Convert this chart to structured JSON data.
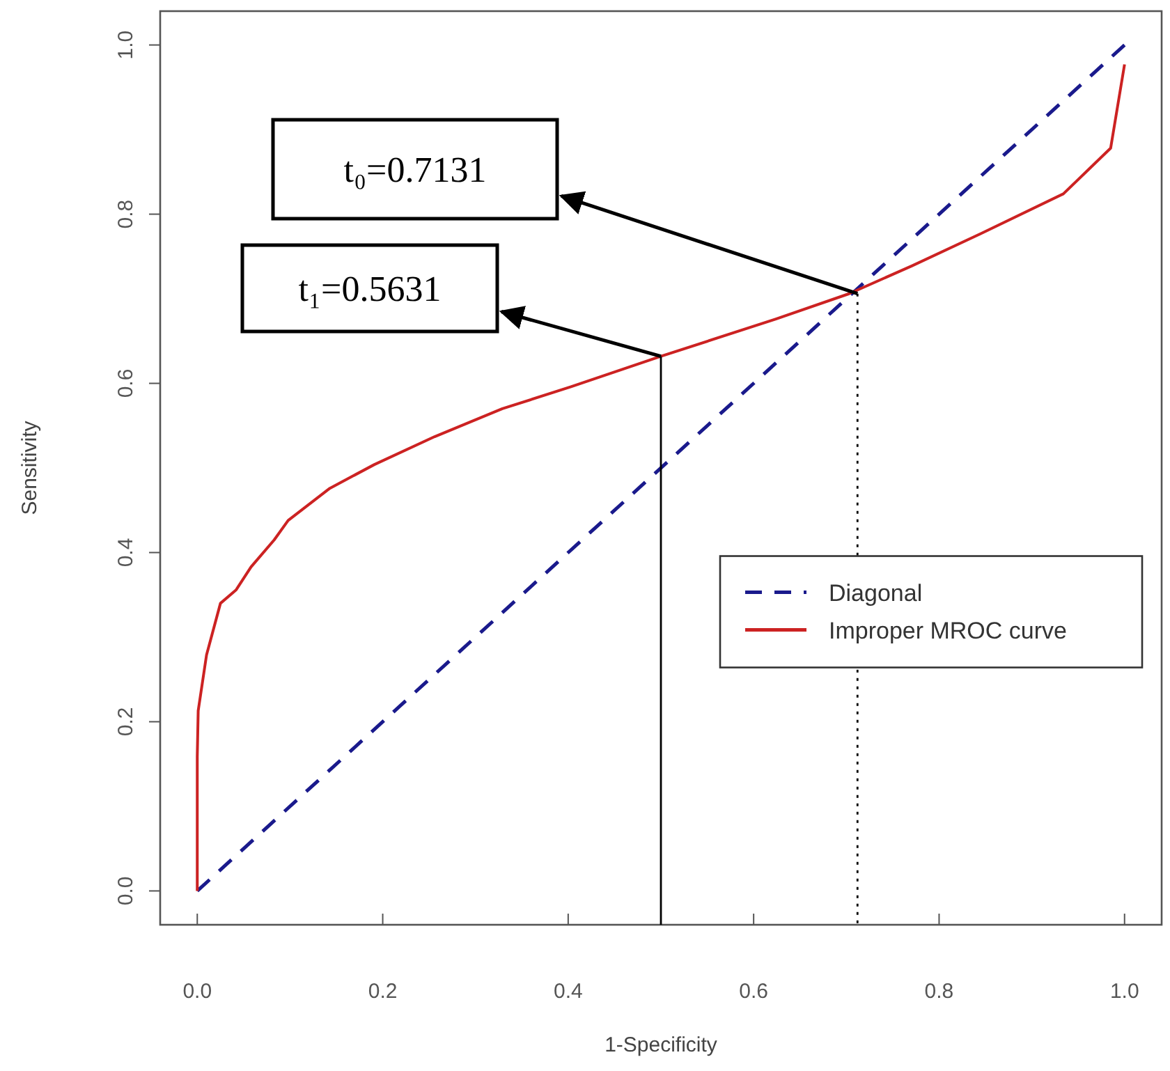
{
  "chart_data": {
    "type": "line",
    "xlabel": "1-Specificity",
    "ylabel": "Sensitivity",
    "xlim": [
      -0.04,
      1.04
    ],
    "ylim": [
      -0.04,
      1.04
    ],
    "xticks": [
      {
        "value": 0,
        "label": "0.0"
      },
      0.2,
      0.4,
      0.6,
      0.8,
      {
        "value": 1,
        "label": "1.0"
      }
    ],
    "yticks": [
      {
        "value": 0,
        "label": "0.0"
      },
      0.2,
      0.4,
      0.6,
      0.8,
      {
        "value": 1,
        "label": "1.0"
      }
    ],
    "grid": false,
    "legend": "right",
    "series": [
      {
        "name": "Diagonal",
        "color": "#1a1a8c",
        "line_style": "dashed",
        "x": [
          0,
          1
        ],
        "values": [
          0,
          1
        ]
      },
      {
        "name": "Improper MROC curve",
        "color": "#cc2222",
        "line_style": "solid",
        "x": [
          0,
          0,
          0.001,
          0.01,
          0.025,
          0.042,
          0.058,
          0.083,
          0.098,
          0.143,
          0.191,
          0.256,
          0.329,
          0.403,
          0.5,
          0.624,
          0.703,
          0.771,
          0.845,
          0.934,
          0.985,
          1.0
        ],
        "values": [
          0,
          0.159,
          0.213,
          0.279,
          0.34,
          0.356,
          0.383,
          0.415,
          0.438,
          0.476,
          0.504,
          0.537,
          0.57,
          0.596,
          0.632,
          0.676,
          0.706,
          0.739,
          0.777,
          0.824,
          0.878,
          0.977
        ]
      },
      {
        "color": "#000000",
        "line_style": "solid",
        "x": [
          0.5,
          0.5
        ],
        "values": [
          0.632,
          -0.04
        ]
      },
      {
        "color": "#000000",
        "line_style": "dotted",
        "x": [
          0.712,
          0.712
        ],
        "values": [
          0.706,
          -0.04
        ]
      }
    ],
    "annotations": [
      "t₀=0.7131",
      "t₁=0.5631"
    ]
  }
}
